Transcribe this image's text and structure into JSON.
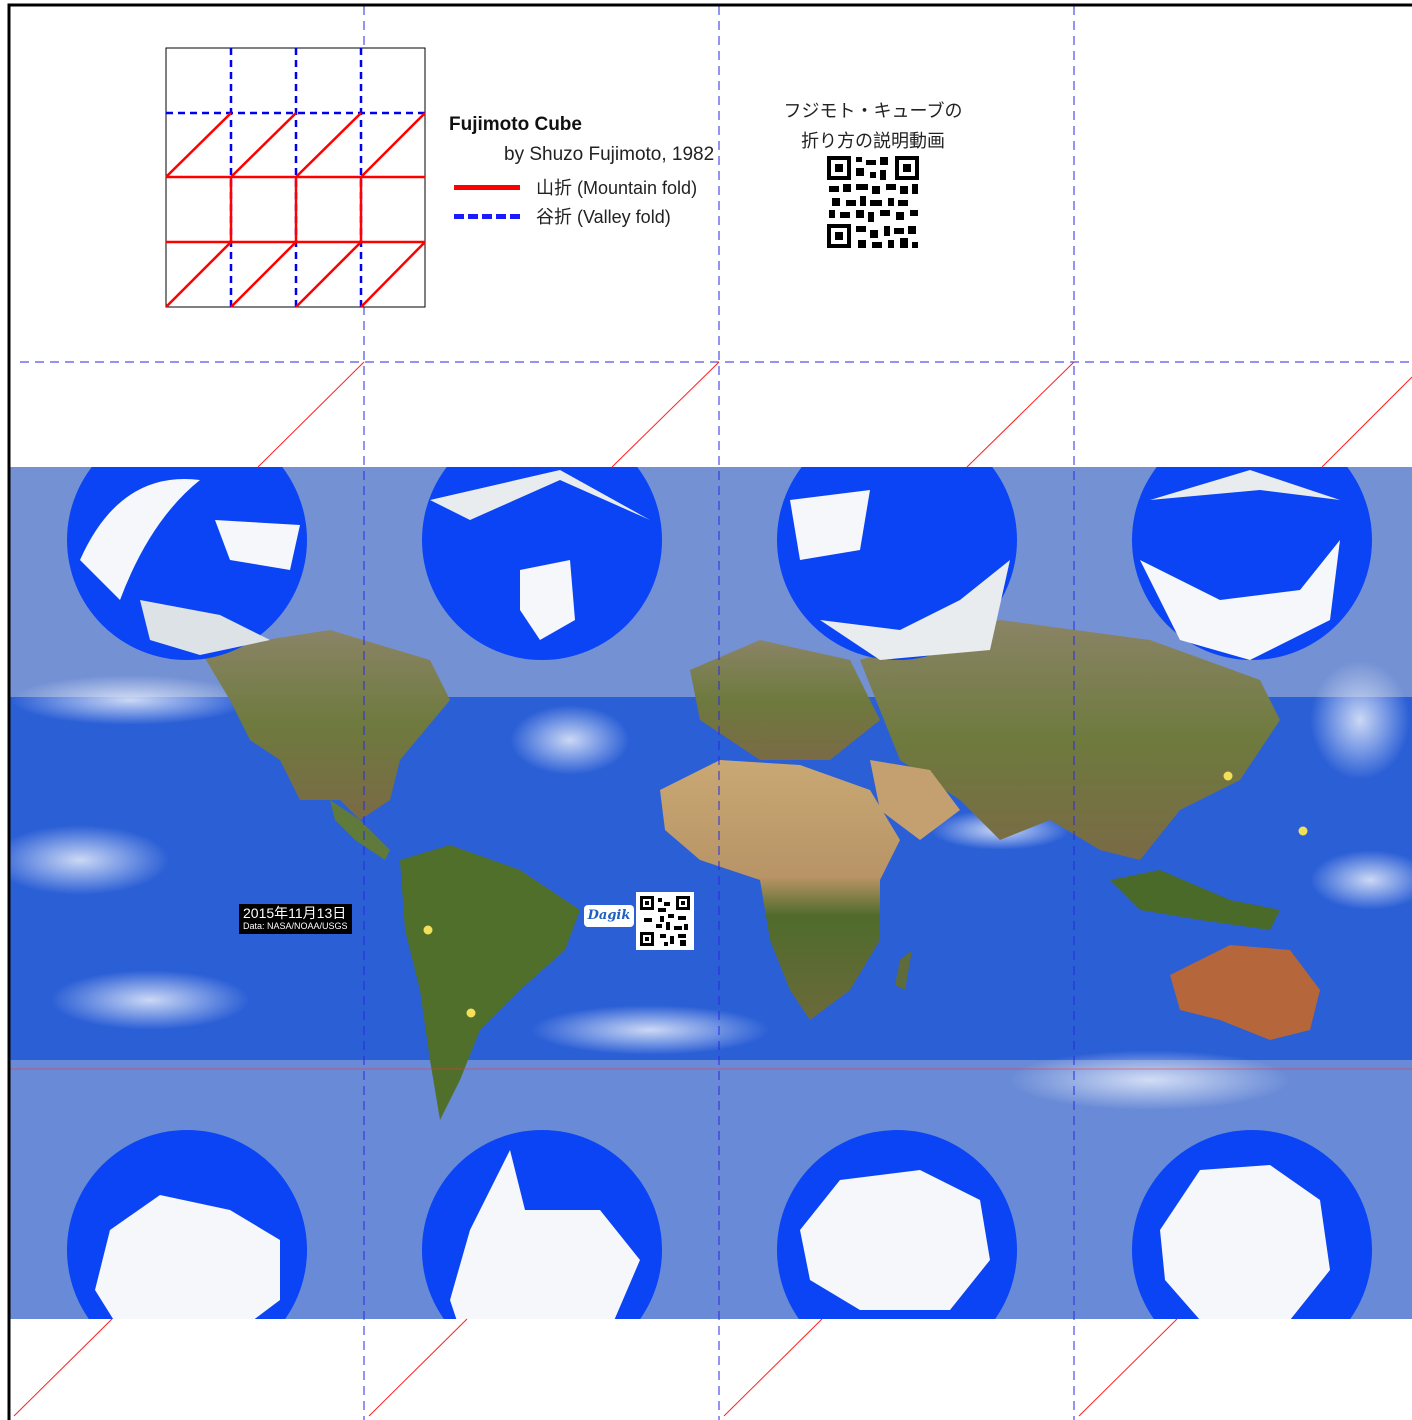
{
  "legend": {
    "title": "Fujimoto Cube",
    "subtitle": "by Shuzo Fujimoto, 1982",
    "mountain_label": "山折 (Mountain fold)",
    "valley_label": "谷折 (Valley fold)",
    "mountain_color": "#ff0000",
    "valley_color": "#1a1aff"
  },
  "video": {
    "caption_line1": "フジモト・キューブの",
    "caption_line2": "折り方の説明動画"
  },
  "globe": {
    "date": "2015年11月13日",
    "credit": "Data: NASA/NOAA/USGS",
    "ocean_color": "#2b5fd6",
    "polar_ocean_color": "#0a44f5",
    "ice_color": "#f5f7fa"
  },
  "logo_text": "Dagik"
}
